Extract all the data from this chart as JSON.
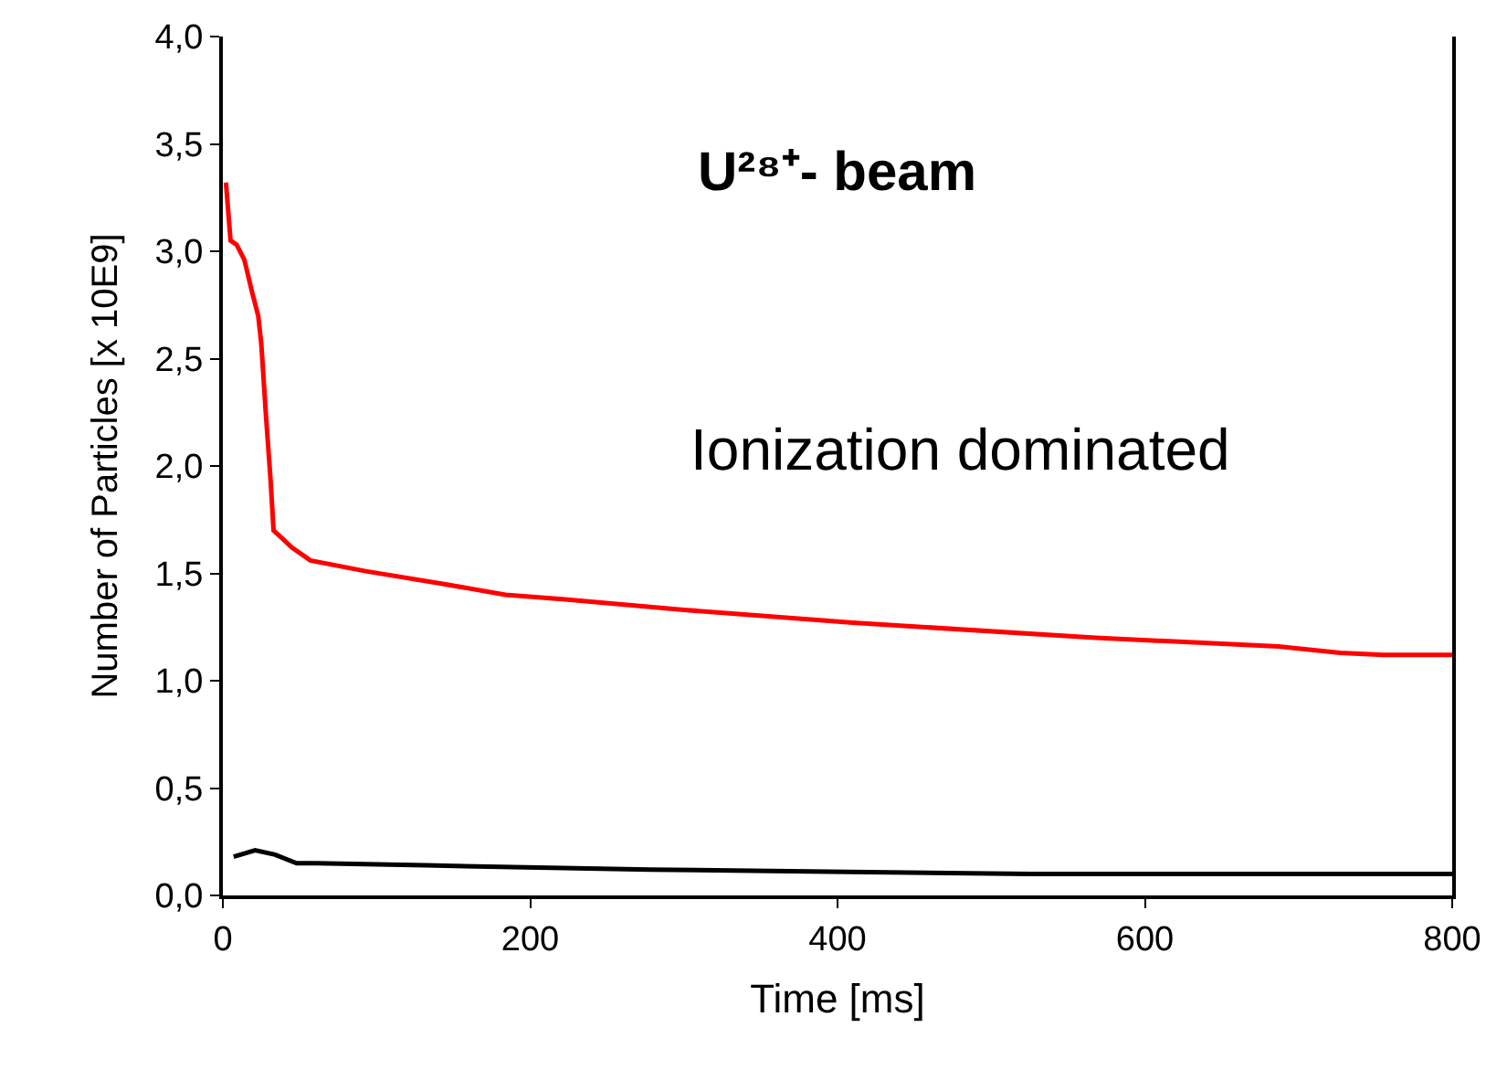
{
  "chart_data": {
    "type": "line",
    "xlabel": "Time [ms]",
    "ylabel": "Number of Particles [x 10E9]",
    "annotations": [
      "U²⁸⁺- beam",
      "Ionization dominated"
    ],
    "xlim": [
      0,
      800
    ],
    "xticks": [
      0,
      200,
      400,
      600,
      800
    ],
    "ylim": [
      0,
      4
    ],
    "yticks": [
      {
        "value": 0,
        "label": "0,0"
      },
      {
        "value": 0.5,
        "label": "0,5"
      },
      {
        "value": 1,
        "label": "1,0"
      },
      {
        "value": 1.5,
        "label": "1,5"
      },
      {
        "value": 2,
        "label": "2,0"
      },
      {
        "value": 2.5,
        "label": "2,5"
      },
      {
        "value": 3,
        "label": "3,0"
      },
      {
        "value": 3.5,
        "label": "3,5"
      },
      {
        "value": 4,
        "label": "4,0"
      }
    ],
    "marker": "none",
    "line_style": "solid",
    "series": [
      {
        "color": "#ff0000",
        "x": [
          2,
          5,
          9,
          14,
          19,
          23,
          25,
          28,
          31,
          33,
          36,
          45,
          57,
          93,
          144,
          184,
          221,
          300,
          410,
          568,
          687,
          727,
          755,
          800
        ],
        "values": [
          3.32,
          3.05,
          3.03,
          2.96,
          2.81,
          2.7,
          2.57,
          2.24,
          1.94,
          1.7,
          1.68,
          1.62,
          1.56,
          1.51,
          1.45,
          1.4,
          1.38,
          1.33,
          1.27,
          1.2,
          1.16,
          1.13,
          1.12,
          1.12
        ]
      },
      {
        "color": "#000000",
        "x": [
          7,
          21,
          34,
          48,
          61,
          132,
          278,
          407,
          526,
          720,
          800
        ],
        "values": [
          0.18,
          0.21,
          0.19,
          0.15,
          0.15,
          0.14,
          0.12,
          0.11,
          0.1,
          0.1,
          0.1
        ]
      }
    ]
  }
}
